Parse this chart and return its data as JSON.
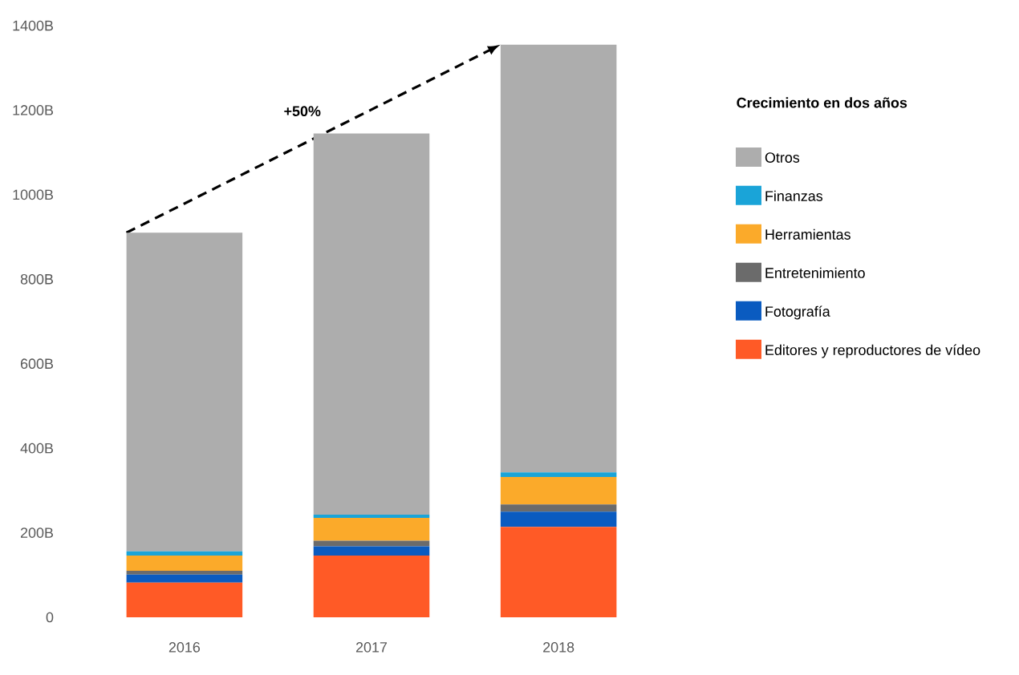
{
  "chart_data": {
    "type": "bar",
    "stacked": true,
    "categories": [
      "2016",
      "2017",
      "2018"
    ],
    "series": [
      {
        "name": "Editores y reproductores de vídeo",
        "color": "#ff5a26",
        "values": [
          82,
          146,
          214
        ]
      },
      {
        "name": "Fotografía",
        "color": "#0a5bc0",
        "values": [
          19,
          22,
          36
        ]
      },
      {
        "name": "Entretenimiento",
        "color": "#6b6b6b",
        "values": [
          9,
          13,
          17
        ]
      },
      {
        "name": "Herramientas",
        "color": "#fbaa2a",
        "values": [
          36,
          54,
          65
        ]
      },
      {
        "name": "Finanzas",
        "color": "#1aa4d8",
        "values": [
          10,
          8,
          11
        ]
      },
      {
        "name": "Otros",
        "color": "#adadad",
        "values": [
          754,
          902,
          1012
        ]
      }
    ],
    "legend_title": "Crecimiento en dos años",
    "legend": "right",
    "ylim": [
      0,
      1400
    ],
    "yticks": [
      0,
      {
        "value": 200,
        "label": "200B"
      },
      {
        "value": 400,
        "label": "400B"
      },
      {
        "value": 600,
        "label": "600B"
      },
      {
        "value": 800,
        "label": "800B"
      },
      {
        "value": 1000,
        "label": "1000B"
      },
      {
        "value": 1200,
        "label": "1200B"
      },
      {
        "value": 1400,
        "label": "1400B"
      }
    ],
    "annotations": [
      "+50%"
    ],
    "grid": false
  }
}
